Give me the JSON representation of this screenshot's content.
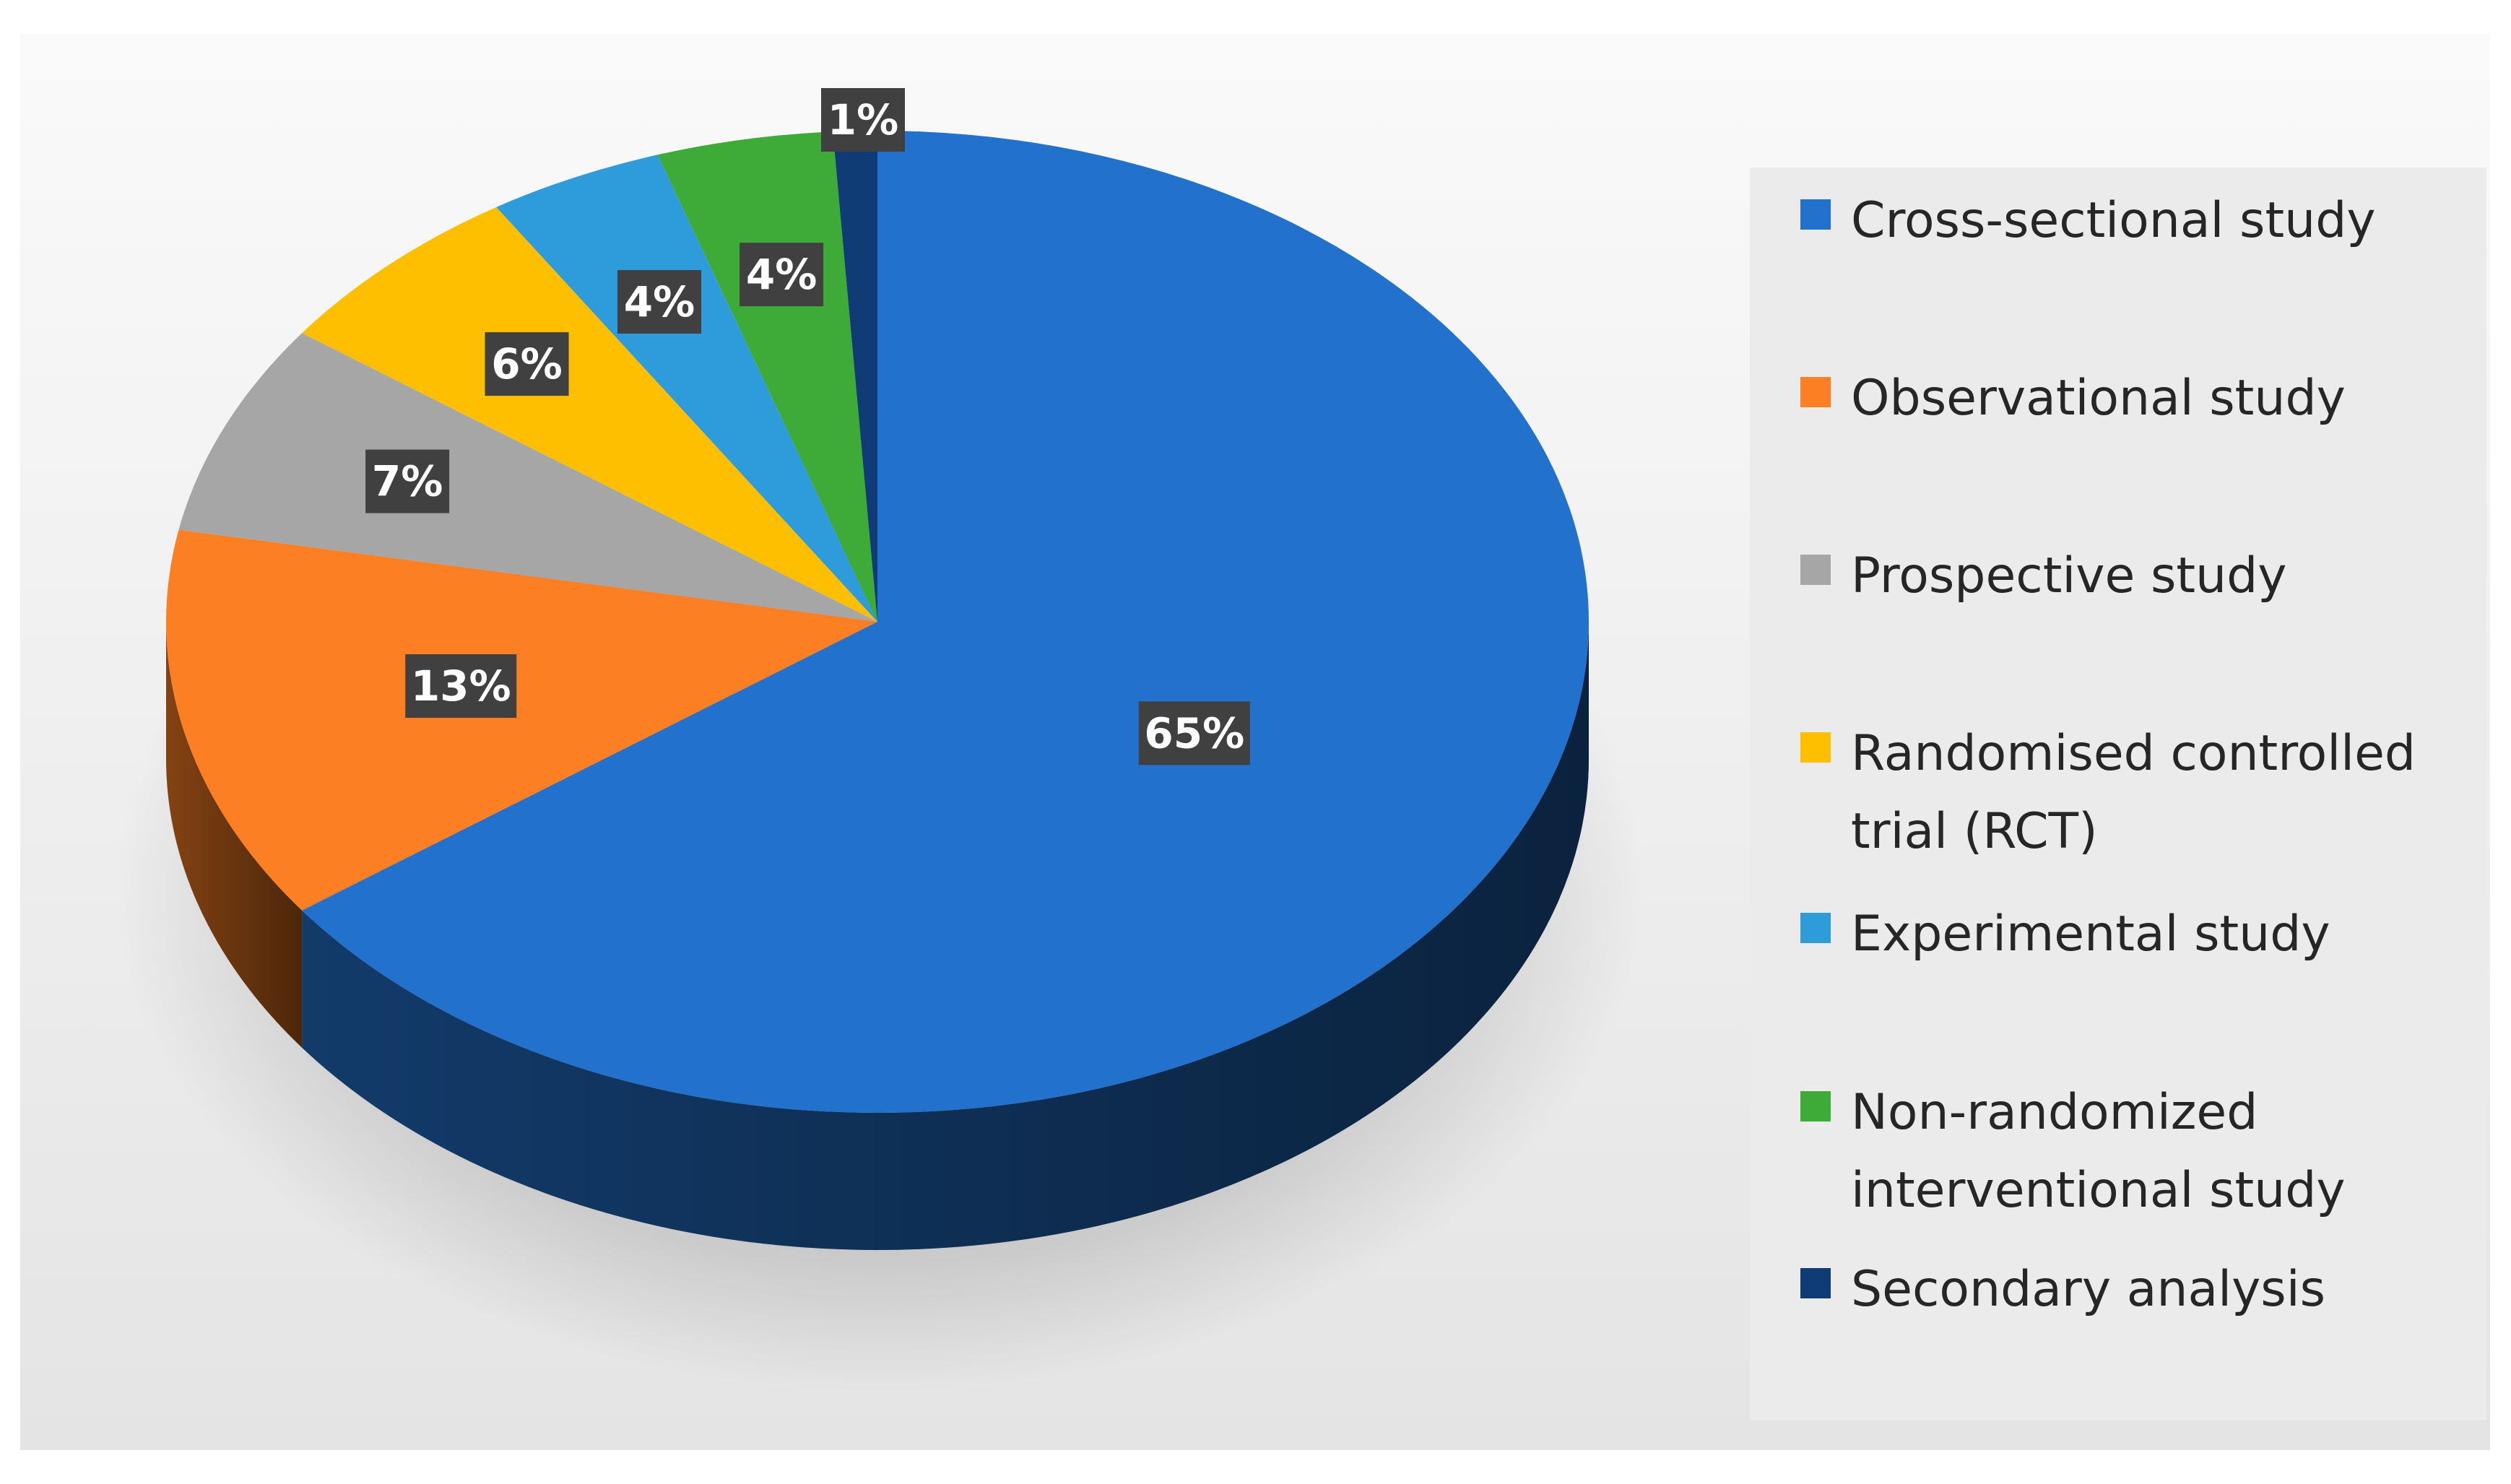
{
  "chart_data": {
    "type": "pie",
    "style": "3d",
    "categories": [
      "Cross-sectional study",
      "Observational study",
      "Prospective study",
      "Randomised controlled trial (RCT)",
      "Experimental study",
      "Non-randomized interventional study",
      "Secondary analysis"
    ],
    "values": [
      65,
      13,
      7,
      6,
      4,
      4,
      1
    ],
    "data_labels": [
      "65%",
      "13%",
      "7%",
      "6%",
      "4%",
      "4%",
      "1%"
    ],
    "colors": [
      "#2271cc",
      "#fd7f23",
      "#a6a6a6",
      "#fdbf00",
      "#2e9bdb",
      "#3eaa38",
      "#0f3c75"
    ],
    "legend": {
      "placement": "right",
      "entries": [
        {
          "label": "Cross-sectional study",
          "color": "#2271cc"
        },
        {
          "label": "Observational study",
          "color": "#fd7f23"
        },
        {
          "label": "Prospective study",
          "color": "#a6a6a6"
        },
        {
          "label": "Randomised controlled trial (RCT)",
          "color": "#fdbf00"
        },
        {
          "label": "Experimental study",
          "color": "#2e9bdb"
        },
        {
          "label": "Non-randomized interventional study",
          "color": "#3eaa38"
        },
        {
          "label": "Secondary analysis",
          "color": "#0f3c75"
        }
      ]
    }
  }
}
